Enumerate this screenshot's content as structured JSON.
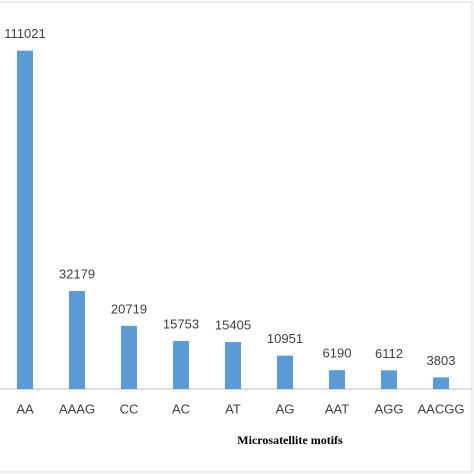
{
  "chart_data": {
    "type": "bar",
    "x_label": "Microsatellite motifs",
    "categories": [
      "AA",
      "AAAG",
      "CC",
      "AC",
      "AT",
      "AG",
      "AAT",
      "AGG",
      "AACGG"
    ],
    "values": [
      111021,
      32179,
      20719,
      15753,
      15405,
      10951,
      6190,
      6112,
      3803
    ],
    "color": "#5b9bd5",
    "ylim": [
      0,
      127000
    ]
  }
}
